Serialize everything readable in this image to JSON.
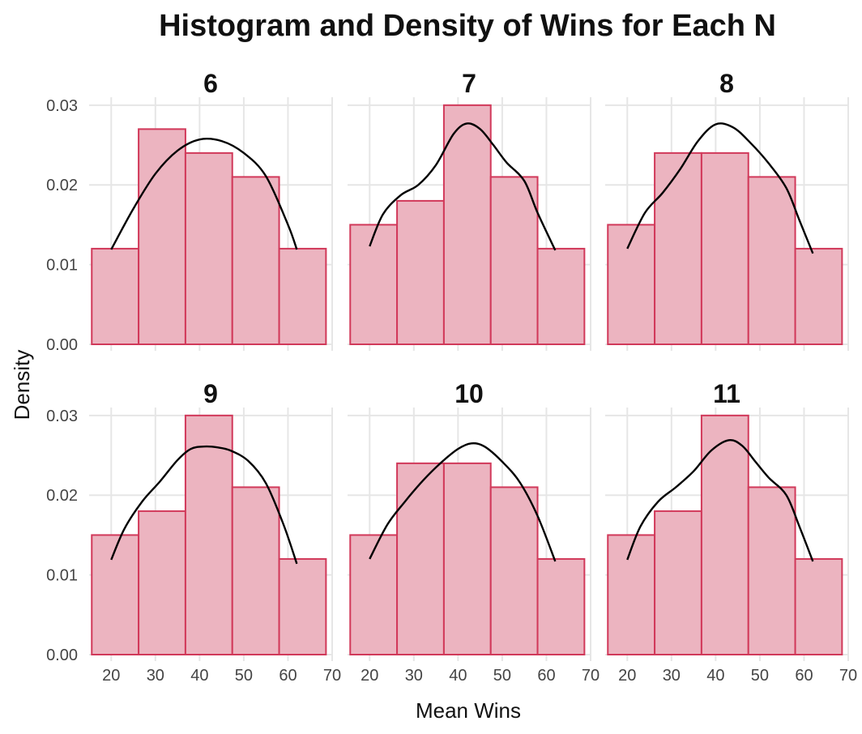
{
  "chart_data": {
    "type": "histogram",
    "title": "Histogram and Density of Wins for Each N",
    "xlabel": "Mean Wins",
    "ylabel": "Density",
    "xlim": [
      15,
      70
    ],
    "ylim": [
      0,
      0.031
    ],
    "x_ticks": [
      "20",
      "30",
      "40",
      "50",
      "60",
      "70"
    ],
    "y_ticks": [
      "0.00",
      "0.01",
      "0.02",
      "0.03"
    ],
    "bin_edges": [
      15.6,
      26.2,
      36.8,
      47.4,
      58.0,
      68.6
    ],
    "grid": true,
    "panels": [
      {
        "label": "6",
        "bar_values": [
          0.012,
          0.027,
          0.024,
          0.021,
          0.012
        ],
        "density_points": [
          [
            20,
            0.0119
          ],
          [
            25,
            0.017
          ],
          [
            30,
            0.0214
          ],
          [
            35,
            0.0243
          ],
          [
            40,
            0.0257
          ],
          [
            45,
            0.0255
          ],
          [
            50,
            0.024
          ],
          [
            55,
            0.0211
          ],
          [
            60,
            0.015
          ],
          [
            62,
            0.0119
          ]
        ]
      },
      {
        "label": "7",
        "bar_values": [
          0.015,
          0.018,
          0.03,
          0.021,
          0.012
        ],
        "density_points": [
          [
            20,
            0.0123
          ],
          [
            23,
            0.0163
          ],
          [
            27,
            0.0187
          ],
          [
            31,
            0.02
          ],
          [
            35,
            0.0225
          ],
          [
            39,
            0.0264
          ],
          [
            42,
            0.0277
          ],
          [
            45,
            0.027
          ],
          [
            48,
            0.025
          ],
          [
            51,
            0.0228
          ],
          [
            55,
            0.0205
          ],
          [
            58,
            0.0165
          ],
          [
            62,
            0.0118
          ]
        ]
      },
      {
        "label": "8",
        "bar_values": [
          0.015,
          0.024,
          0.024,
          0.021,
          0.012
        ],
        "density_points": [
          [
            20,
            0.012
          ],
          [
            24,
            0.0165
          ],
          [
            28,
            0.019
          ],
          [
            32,
            0.022
          ],
          [
            36,
            0.0255
          ],
          [
            40,
            0.0276
          ],
          [
            44,
            0.0272
          ],
          [
            48,
            0.0252
          ],
          [
            52,
            0.0227
          ],
          [
            56,
            0.0196
          ],
          [
            59,
            0.0155
          ],
          [
            62,
            0.0114
          ]
        ]
      },
      {
        "label": "9",
        "bar_values": [
          0.015,
          0.018,
          0.03,
          0.021,
          0.012
        ],
        "density_points": [
          [
            20,
            0.0119
          ],
          [
            23,
            0.0158
          ],
          [
            27,
            0.0192
          ],
          [
            31,
            0.0217
          ],
          [
            35,
            0.0244
          ],
          [
            38,
            0.0258
          ],
          [
            41,
            0.0261
          ],
          [
            44,
            0.026
          ],
          [
            47,
            0.0256
          ],
          [
            51,
            0.0243
          ],
          [
            55,
            0.0215
          ],
          [
            59,
            0.0163
          ],
          [
            62,
            0.0114
          ]
        ]
      },
      {
        "label": "10",
        "bar_values": [
          0.015,
          0.024,
          0.024,
          0.021,
          0.012
        ],
        "density_points": [
          [
            20,
            0.012
          ],
          [
            24,
            0.0163
          ],
          [
            28,
            0.0192
          ],
          [
            32,
            0.0218
          ],
          [
            36,
            0.024
          ],
          [
            40,
            0.0258
          ],
          [
            43,
            0.0265
          ],
          [
            46,
            0.0261
          ],
          [
            50,
            0.0242
          ],
          [
            54,
            0.0216
          ],
          [
            58,
            0.0174
          ],
          [
            62,
            0.0117
          ]
        ]
      },
      {
        "label": "11",
        "bar_values": [
          0.015,
          0.018,
          0.03,
          0.021,
          0.012
        ],
        "density_points": [
          [
            20,
            0.0119
          ],
          [
            23,
            0.0161
          ],
          [
            27,
            0.0192
          ],
          [
            31,
            0.021
          ],
          [
            35,
            0.023
          ],
          [
            39,
            0.0256
          ],
          [
            43,
            0.0269
          ],
          [
            46,
            0.0262
          ],
          [
            49,
            0.0242
          ],
          [
            52,
            0.0222
          ],
          [
            56,
            0.02
          ],
          [
            59,
            0.016
          ],
          [
            62,
            0.0117
          ]
        ]
      }
    ]
  }
}
